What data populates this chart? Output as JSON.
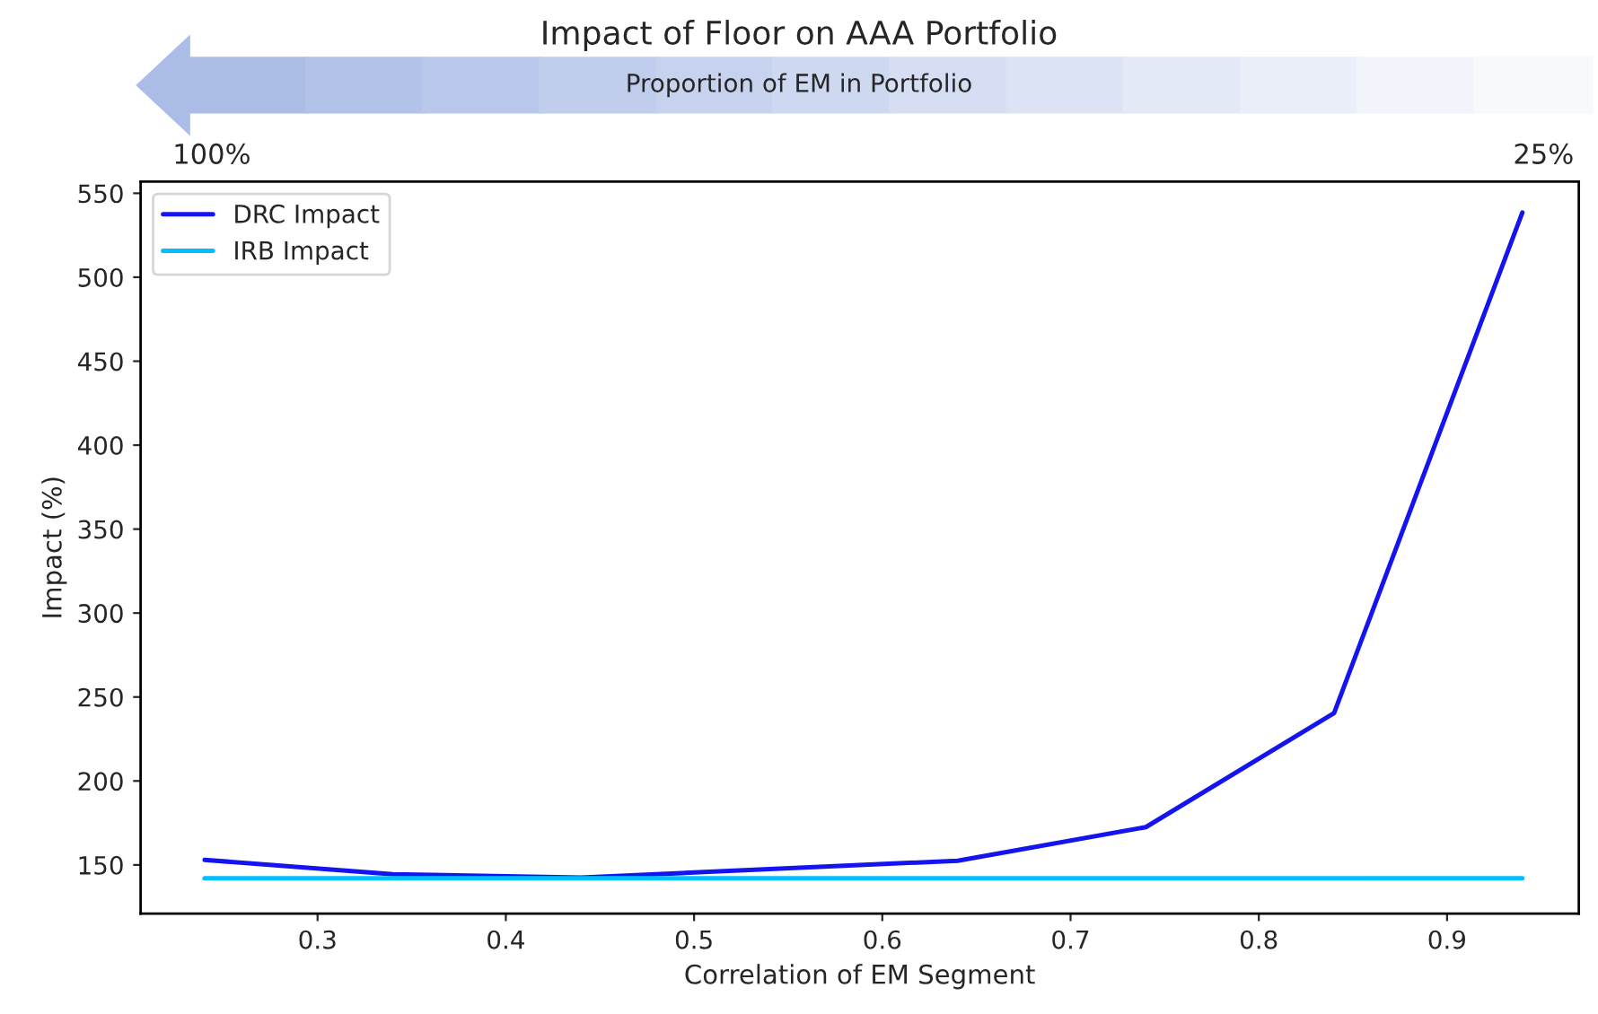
{
  "chart_data": {
    "type": "line",
    "title": "Impact of Floor on AAA Portfolio",
    "xlabel": "Correlation of EM Segment",
    "ylabel": "Impact (%)",
    "annotations": [
      "Proportion of EM in Portfolio",
      "100%",
      "25%"
    ],
    "x": [
      0.24,
      0.34,
      0.44,
      0.54,
      0.64,
      0.74,
      0.84,
      0.94
    ],
    "series": [
      {
        "name": "DRC Impact",
        "color": "#1414f0",
        "values": [
          153,
          144.5,
          142.5,
          147.5,
          152.5,
          172.5,
          240.5,
          538.5
        ]
      },
      {
        "name": "IRB Impact",
        "color": "#00bfff",
        "values": [
          142,
          142,
          142,
          142,
          142,
          142,
          142,
          142
        ]
      }
    ],
    "xlim": [
      0.206,
      0.97
    ],
    "ylim": [
      121,
      557
    ],
    "xticks": [
      0.3,
      0.4,
      0.5,
      0.6,
      0.7,
      0.8,
      0.9
    ],
    "yticks": [
      150,
      200,
      250,
      300,
      350,
      400,
      450,
      500,
      550
    ],
    "grid": false,
    "legend": "top left",
    "marker": "none",
    "line_style": "solid"
  }
}
